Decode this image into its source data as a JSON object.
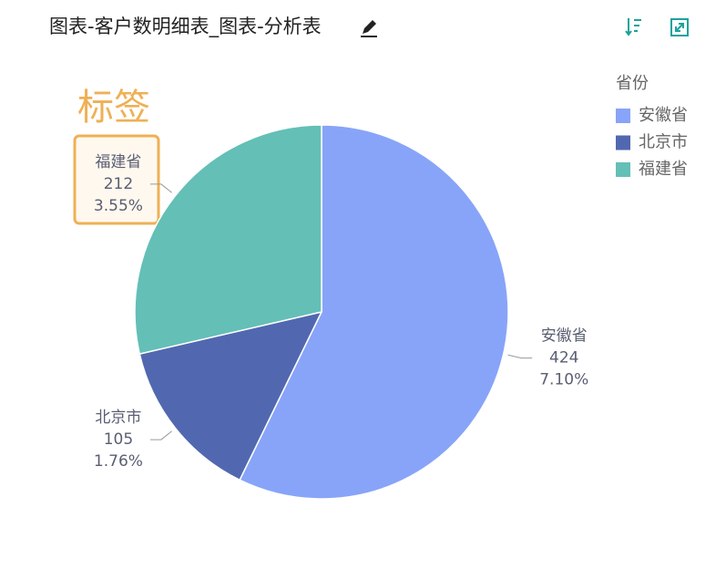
{
  "chart_data": {
    "type": "pie",
    "title": "图表-客户数明细表_图表-分析表",
    "legend_title": "省份",
    "annotation": "标签",
    "categories": [
      "安徽省",
      "北京市",
      "福建省"
    ],
    "values": [
      424,
      105,
      212
    ],
    "percent_labels": [
      "7.10%",
      "1.76%",
      "3.55%"
    ],
    "colors": [
      "#88a4f8",
      "#5168b0",
      "#64bfb7"
    ],
    "legend": "top-right"
  }
}
